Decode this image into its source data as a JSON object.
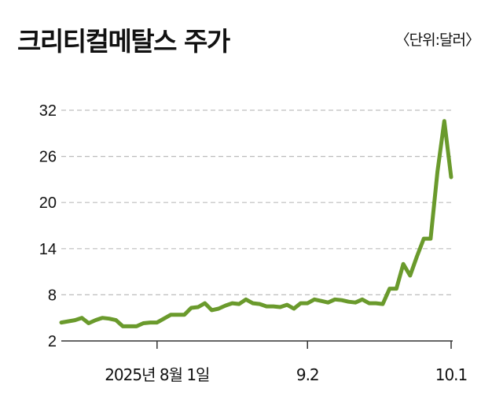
{
  "header": {
    "title": "크리티컬메탈스 주가",
    "unit": "〈단위:달러〉"
  },
  "colors": {
    "line": "#6a9a2c",
    "grid": "#bdbdbd",
    "axis": "#333333"
  },
  "chart_data": {
    "type": "line",
    "title": "크리티컬메탈스 주가",
    "unit": "〈단위:달러〉",
    "ylim": [
      2,
      32
    ],
    "y_ticks": [
      2,
      8,
      14,
      20,
      26,
      32
    ],
    "grid": true,
    "x_ticks": [
      {
        "label": "2025년 8월 1일",
        "x": 14
      },
      {
        "label": "9.2",
        "x": 36
      },
      {
        "label": "10.1",
        "x": 57
      }
    ],
    "xlim": [
      0,
      68
    ],
    "series": [
      {
        "values": [
          [
            0,
            4.4
          ],
          [
            2,
            4.7
          ],
          [
            3,
            5.0
          ],
          [
            4,
            4.3
          ],
          [
            5,
            4.7
          ],
          [
            6,
            5.0
          ],
          [
            7,
            4.9
          ],
          [
            8,
            4.7
          ],
          [
            9,
            3.9
          ],
          [
            10,
            3.9
          ],
          [
            11,
            3.9
          ],
          [
            12,
            4.3
          ],
          [
            13,
            4.4
          ],
          [
            14,
            4.4
          ],
          [
            15,
            4.9
          ],
          [
            16,
            5.4
          ],
          [
            17,
            5.4
          ],
          [
            18,
            5.4
          ],
          [
            19,
            6.3
          ],
          [
            20,
            6.4
          ],
          [
            21,
            6.9
          ],
          [
            22,
            6.0
          ],
          [
            23,
            6.2
          ],
          [
            24,
            6.6
          ],
          [
            25,
            6.9
          ],
          [
            26,
            6.8
          ],
          [
            27,
            7.4
          ],
          [
            28,
            6.9
          ],
          [
            29,
            6.8
          ],
          [
            30,
            6.5
          ],
          [
            31,
            6.5
          ],
          [
            32,
            6.4
          ],
          [
            33,
            6.7
          ],
          [
            34,
            6.2
          ],
          [
            35,
            6.9
          ],
          [
            36,
            6.9
          ],
          [
            37,
            7.4
          ],
          [
            38,
            7.2
          ],
          [
            39,
            7.0
          ],
          [
            40,
            7.4
          ],
          [
            41,
            7.3
          ],
          [
            42,
            7.1
          ],
          [
            43,
            7.0
          ],
          [
            44,
            7.4
          ],
          [
            45,
            6.9
          ],
          [
            46,
            6.9
          ],
          [
            47,
            6.8
          ],
          [
            48,
            8.8
          ],
          [
            49,
            8.8
          ],
          [
            50,
            12.0
          ],
          [
            51,
            10.5
          ],
          [
            52,
            13.0
          ],
          [
            53,
            15.3
          ],
          [
            54,
            15.3
          ],
          [
            55,
            24.0
          ],
          [
            56,
            30.6
          ],
          [
            57,
            23.3
          ]
        ]
      }
    ]
  }
}
